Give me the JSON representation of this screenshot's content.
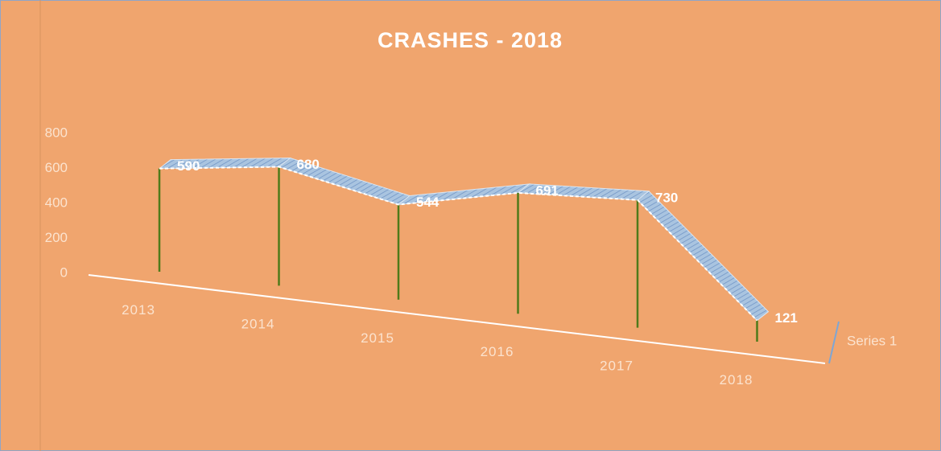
{
  "chart_data": {
    "type": "line3d",
    "title": "CRASHES - 2018",
    "categories": [
      "2013",
      "2014",
      "2015",
      "2016",
      "2017",
      "2018"
    ],
    "series": [
      {
        "name": "Series 1",
        "color": "#a9c4e0",
        "values": [
          590,
          680,
          544,
          691,
          730,
          121
        ]
      }
    ],
    "ylim": [
      0,
      800
    ],
    "yticks": [
      0,
      200,
      400,
      600,
      800
    ],
    "drop_line_color": "#4f7a1a"
  }
}
